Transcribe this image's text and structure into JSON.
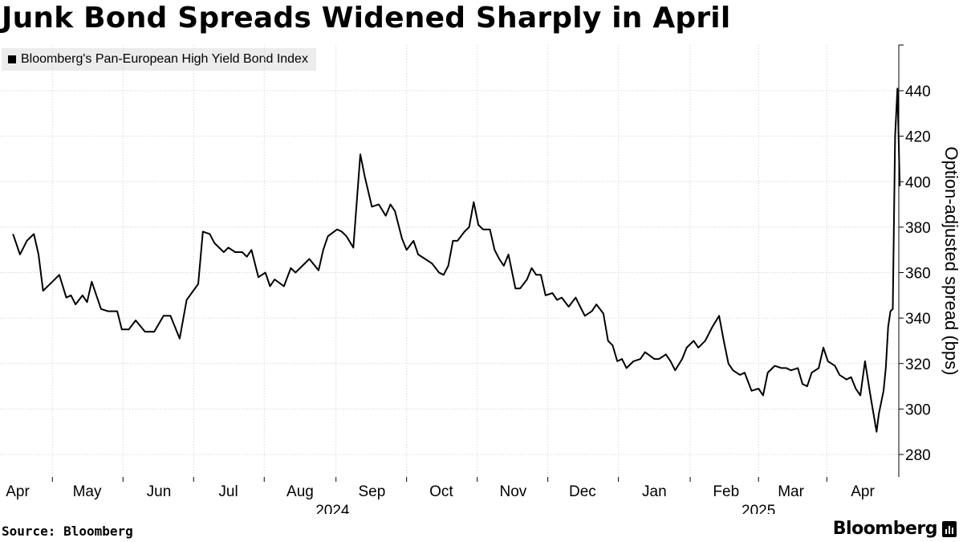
{
  "title": "Junk Bond Spreads Widened Sharply in April",
  "legend_label": "Bloomberg's Pan-European High Yield Bond Index",
  "source": "Source: Bloomberg",
  "brand": "Bloomberg",
  "colors": {
    "line": "#000000",
    "grid": "#d9d9d9",
    "legend_bg": "#ececec"
  },
  "chart_data": {
    "type": "line",
    "title": "Junk Bond Spreads Widened Sharply in April",
    "ylabel": "Option-adjusted spread (bps)",
    "ylim": [
      270,
      460
    ],
    "yticks": [
      280,
      300,
      320,
      340,
      360,
      380,
      400,
      420,
      440
    ],
    "ytick_labels": [
      "280",
      "300",
      "320",
      "340",
      "360",
      "380",
      "400",
      "420",
      "440"
    ],
    "y_axis_side": "right",
    "grid": true,
    "legend": "top-left",
    "xlim": [
      "2024-03-30",
      "2025-04-17"
    ],
    "x_ticks": [
      {
        "date": "2024-04-01",
        "label": "Apr"
      },
      {
        "date": "2024-05-01",
        "label": "May"
      },
      {
        "date": "2024-06-01",
        "label": "Jun"
      },
      {
        "date": "2024-07-01",
        "label": "Jul"
      },
      {
        "date": "2024-08-01",
        "label": "Aug"
      },
      {
        "date": "2024-09-01",
        "label": "Sep"
      },
      {
        "date": "2024-10-01",
        "label": "Oct"
      },
      {
        "date": "2024-11-01",
        "label": "Nov"
      },
      {
        "date": "2024-12-01",
        "label": "Dec"
      },
      {
        "date": "2025-01-01",
        "label": "Jan"
      },
      {
        "date": "2025-02-01",
        "label": "Feb"
      },
      {
        "date": "2025-03-01",
        "label": "Mar"
      },
      {
        "date": "2025-04-01",
        "label": "Apr"
      }
    ],
    "year_labels": [
      {
        "date": "2024-08-15",
        "label": "2024"
      },
      {
        "date": "2025-02-15",
        "label": "2025"
      }
    ],
    "series": [
      {
        "name": "Bloomberg's Pan-European High Yield Bond Index",
        "points": [
          [
            "2024-03-30",
            377
          ],
          [
            "2024-04-02",
            368
          ],
          [
            "2024-04-05",
            374
          ],
          [
            "2024-04-08",
            377
          ],
          [
            "2024-04-10",
            368
          ],
          [
            "2024-04-12",
            352
          ],
          [
            "2024-04-16",
            356
          ],
          [
            "2024-04-19",
            359
          ],
          [
            "2024-04-22",
            349
          ],
          [
            "2024-04-24",
            350
          ],
          [
            "2024-04-26",
            346
          ],
          [
            "2024-04-29",
            350
          ],
          [
            "2024-05-01",
            347
          ],
          [
            "2024-05-03",
            356
          ],
          [
            "2024-05-07",
            344
          ],
          [
            "2024-05-10",
            343
          ],
          [
            "2024-05-14",
            343
          ],
          [
            "2024-05-16",
            335
          ],
          [
            "2024-05-19",
            335
          ],
          [
            "2024-05-22",
            339
          ],
          [
            "2024-05-26",
            334
          ],
          [
            "2024-05-30",
            334
          ],
          [
            "2024-06-03",
            341
          ],
          [
            "2024-06-06",
            341
          ],
          [
            "2024-06-10",
            331
          ],
          [
            "2024-06-13",
            348
          ],
          [
            "2024-06-18",
            355
          ],
          [
            "2024-06-20",
            378
          ],
          [
            "2024-06-23",
            377
          ],
          [
            "2024-06-25",
            373
          ],
          [
            "2024-06-29",
            369
          ],
          [
            "2024-07-01",
            371
          ],
          [
            "2024-07-04",
            369
          ],
          [
            "2024-07-07",
            369
          ],
          [
            "2024-07-09",
            367
          ],
          [
            "2024-07-11",
            370
          ],
          [
            "2024-07-14",
            358
          ],
          [
            "2024-07-17",
            360
          ],
          [
            "2024-07-19",
            354
          ],
          [
            "2024-07-21",
            357
          ],
          [
            "2024-07-25",
            354
          ],
          [
            "2024-07-28",
            362
          ],
          [
            "2024-07-30",
            360
          ],
          [
            "2024-08-02",
            363
          ],
          [
            "2024-08-05",
            366
          ],
          [
            "2024-08-09",
            361
          ],
          [
            "2024-08-11",
            370
          ],
          [
            "2024-08-13",
            376
          ],
          [
            "2024-08-17",
            379
          ],
          [
            "2024-08-19",
            378
          ],
          [
            "2024-08-21",
            376
          ],
          [
            "2024-08-24",
            371
          ],
          [
            "2024-08-27",
            412
          ],
          [
            "2024-08-29",
            402
          ],
          [
            "2024-09-01",
            389
          ],
          [
            "2024-09-04",
            390
          ],
          [
            "2024-09-07",
            385
          ],
          [
            "2024-09-09",
            390
          ],
          [
            "2024-09-11",
            387
          ],
          [
            "2024-09-14",
            375
          ],
          [
            "2024-09-16",
            370
          ],
          [
            "2024-09-19",
            374
          ],
          [
            "2024-09-21",
            368
          ],
          [
            "2024-09-24",
            366
          ],
          [
            "2024-09-27",
            364
          ],
          [
            "2024-09-30",
            360
          ],
          [
            "2024-10-02",
            359
          ],
          [
            "2024-10-04",
            363
          ],
          [
            "2024-10-06",
            374
          ],
          [
            "2024-10-08",
            374
          ],
          [
            "2024-10-11",
            378
          ],
          [
            "2024-10-13",
            380
          ],
          [
            "2024-10-15",
            391
          ],
          [
            "2024-10-17",
            381
          ],
          [
            "2024-10-19",
            379
          ],
          [
            "2024-10-22",
            379
          ],
          [
            "2024-10-24",
            370
          ],
          [
            "2024-10-26",
            366
          ],
          [
            "2024-10-28",
            363
          ],
          [
            "2024-10-30",
            368
          ],
          [
            "2024-11-02",
            353
          ],
          [
            "2024-11-04",
            353
          ],
          [
            "2024-11-07",
            357
          ],
          [
            "2024-11-09",
            362
          ],
          [
            "2024-11-11",
            359
          ],
          [
            "2024-11-13",
            359
          ],
          [
            "2024-11-15",
            350
          ],
          [
            "2024-11-18",
            351
          ],
          [
            "2024-11-20",
            348
          ],
          [
            "2024-11-22",
            349
          ],
          [
            "2024-11-25",
            345
          ],
          [
            "2024-11-28",
            349
          ],
          [
            "2024-11-30",
            345
          ],
          [
            "2024-12-02",
            341
          ],
          [
            "2024-12-05",
            343
          ],
          [
            "2024-12-07",
            346
          ],
          [
            "2024-12-10",
            342
          ],
          [
            "2024-12-12",
            330
          ],
          [
            "2024-12-14",
            328
          ],
          [
            "2024-12-16",
            321
          ],
          [
            "2024-12-18",
            322
          ],
          [
            "2024-12-20",
            318
          ],
          [
            "2024-12-23",
            321
          ],
          [
            "2024-12-26",
            322
          ],
          [
            "2024-12-28",
            325
          ],
          [
            "2025-01-01",
            322
          ],
          [
            "2025-01-03",
            322
          ],
          [
            "2025-01-06",
            324
          ],
          [
            "2025-01-08",
            321
          ],
          [
            "2025-01-10",
            317
          ],
          [
            "2025-01-13",
            322
          ],
          [
            "2025-01-15",
            327
          ],
          [
            "2025-01-18",
            330
          ],
          [
            "2025-01-20",
            327
          ],
          [
            "2025-01-23",
            330
          ],
          [
            "2025-01-26",
            336
          ],
          [
            "2025-01-29",
            341
          ],
          [
            "2025-01-31",
            330
          ],
          [
            "2025-02-02",
            320
          ],
          [
            "2025-02-04",
            317
          ],
          [
            "2025-02-07",
            315
          ],
          [
            "2025-02-09",
            316
          ],
          [
            "2025-02-12",
            308
          ],
          [
            "2025-02-15",
            309
          ],
          [
            "2025-02-17",
            306
          ],
          [
            "2025-02-19",
            316
          ],
          [
            "2025-02-22",
            319
          ],
          [
            "2025-02-25",
            318
          ],
          [
            "2025-02-27",
            318
          ],
          [
            "2025-03-01",
            317
          ],
          [
            "2025-03-04",
            318
          ],
          [
            "2025-03-06",
            311
          ],
          [
            "2025-03-08",
            310
          ],
          [
            "2025-03-10",
            316
          ],
          [
            "2025-03-13",
            318
          ],
          [
            "2025-03-15",
            327
          ],
          [
            "2025-03-17",
            321
          ],
          [
            "2025-03-20",
            319
          ],
          [
            "2025-03-22",
            315
          ],
          [
            "2025-03-25",
            313
          ],
          [
            "2025-03-27",
            314
          ],
          [
            "2025-03-29",
            309
          ],
          [
            "2025-03-31",
            306
          ],
          [
            "2025-04-02",
            321
          ],
          [
            "2025-04-04",
            308
          ],
          [
            "2025-04-05",
            302
          ],
          [
            "2025-04-07",
            290
          ],
          [
            "2025-04-08",
            298
          ],
          [
            "2025-04-09",
            303
          ],
          [
            "2025-04-10",
            308
          ],
          [
            "2025-04-11",
            318
          ],
          [
            "2025-04-12",
            336
          ],
          [
            "2025-04-13",
            343
          ],
          [
            "2025-04-14",
            344
          ],
          [
            "2025-04-15",
            420
          ],
          [
            "2025-04-16",
            441
          ],
          [
            "2025-04-17",
            398
          ]
        ]
      }
    ]
  }
}
